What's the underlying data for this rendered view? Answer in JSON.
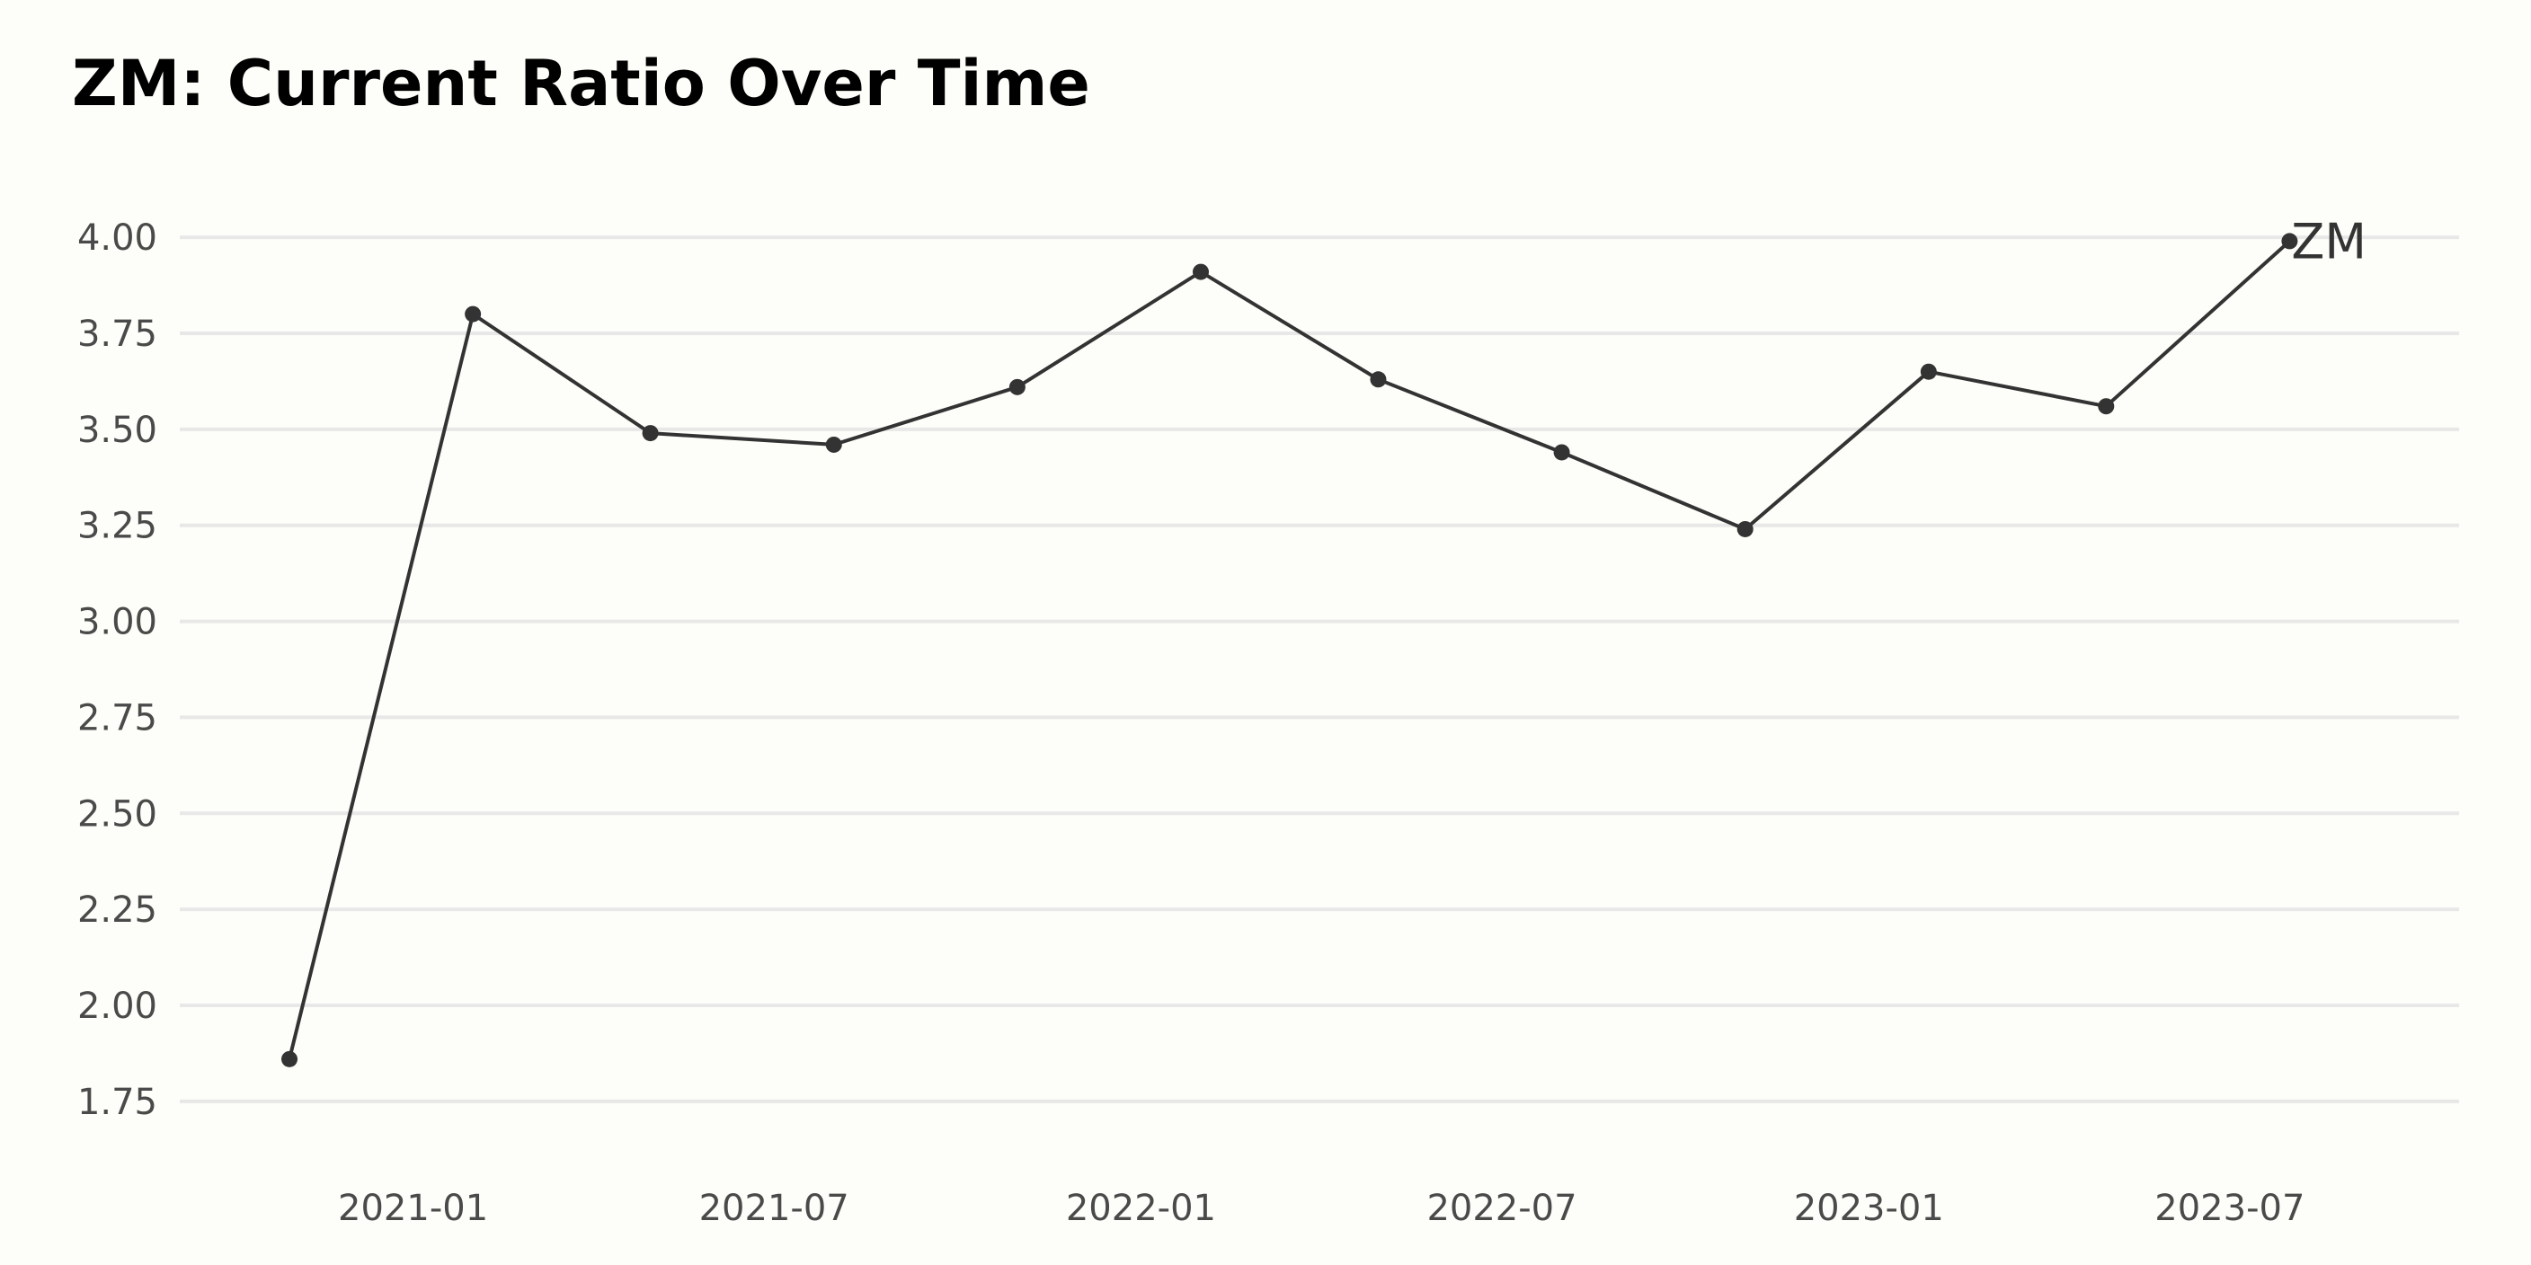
{
  "chart_data": {
    "type": "line",
    "title": "ZM: Current Ratio Over Time",
    "xlabel": "",
    "ylabel": "",
    "x_axis": {
      "type": "date",
      "range": [
        "2020-09-06",
        "2023-10-24"
      ],
      "ticks": [
        "2021-01",
        "2021-07",
        "2022-01",
        "2022-07",
        "2023-01",
        "2023-07"
      ],
      "tick_dates": [
        "2021-01-01",
        "2021-07-01",
        "2022-01-01",
        "2022-07-01",
        "2023-01-01",
        "2023-07-01"
      ]
    },
    "y_axis": {
      "range": [
        1.6,
        4.15
      ],
      "ticks": [
        "1.75",
        "2.00",
        "2.25",
        "2.50",
        "2.75",
        "3.00",
        "3.25",
        "3.50",
        "3.75",
        "4.00"
      ],
      "tick_values": [
        1.75,
        2.0,
        2.25,
        2.5,
        2.75,
        3.0,
        3.25,
        3.5,
        3.75,
        4.0
      ]
    },
    "grid": {
      "horizontal": true,
      "vertical": false
    },
    "series": [
      {
        "name": "ZM",
        "color": "#333333",
        "points": [
          {
            "x": "2020-10-31",
            "y": 1.86
          },
          {
            "x": "2021-01-31",
            "y": 3.8
          },
          {
            "x": "2021-04-30",
            "y": 3.49
          },
          {
            "x": "2021-07-31",
            "y": 3.46
          },
          {
            "x": "2021-10-31",
            "y": 3.61
          },
          {
            "x": "2022-01-31",
            "y": 3.91
          },
          {
            "x": "2022-04-30",
            "y": 3.63
          },
          {
            "x": "2022-07-31",
            "y": 3.44
          },
          {
            "x": "2022-10-31",
            "y": 3.24
          },
          {
            "x": "2023-01-31",
            "y": 3.65
          },
          {
            "x": "2023-04-30",
            "y": 3.56
          },
          {
            "x": "2023-07-31",
            "y": 3.99
          }
        ]
      }
    ],
    "colors": {
      "background": "#fdfdf9",
      "grid": "#e8e8e8",
      "line": "#333333",
      "title": "#000000",
      "tick_label": "#4a4a4a"
    }
  }
}
